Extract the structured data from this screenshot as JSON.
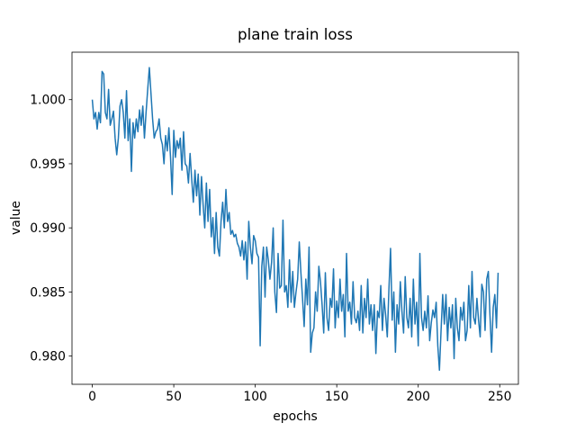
{
  "chart_data": {
    "type": "line",
    "title": "plane train loss",
    "x_label": "epochs",
    "y_label": "value",
    "x": [
      0,
      1,
      2,
      3,
      4,
      5,
      6,
      7,
      8,
      9,
      10,
      11,
      12,
      13,
      14,
      15,
      16,
      17,
      18,
      19,
      20,
      21,
      22,
      23,
      24,
      25,
      26,
      27,
      28,
      29,
      30,
      31,
      32,
      33,
      34,
      35,
      36,
      37,
      38,
      39,
      40,
      41,
      42,
      43,
      44,
      45,
      46,
      47,
      48,
      49,
      50,
      51,
      52,
      53,
      54,
      55,
      56,
      57,
      58,
      59,
      60,
      61,
      62,
      63,
      64,
      65,
      66,
      67,
      68,
      69,
      70,
      71,
      72,
      73,
      74,
      75,
      76,
      77,
      78,
      79,
      80,
      81,
      82,
      83,
      84,
      85,
      86,
      87,
      88,
      89,
      90,
      91,
      92,
      93,
      94,
      95,
      96,
      97,
      98,
      99,
      100,
      101,
      102,
      103,
      104,
      105,
      106,
      107,
      108,
      109,
      110,
      111,
      112,
      113,
      114,
      115,
      116,
      117,
      118,
      119,
      120,
      121,
      122,
      123,
      124,
      125,
      126,
      127,
      128,
      129,
      130,
      131,
      132,
      133,
      134,
      135,
      136,
      137,
      138,
      139,
      140,
      141,
      142,
      143,
      144,
      145,
      146,
      147,
      148,
      149,
      150,
      151,
      152,
      153,
      154,
      155,
      156,
      157,
      158,
      159,
      160,
      161,
      162,
      163,
      164,
      165,
      166,
      167,
      168,
      169,
      170,
      171,
      172,
      173,
      174,
      175,
      176,
      177,
      178,
      179,
      180,
      181,
      182,
      183,
      184,
      185,
      186,
      187,
      188,
      189,
      190,
      191,
      192,
      193,
      194,
      195,
      196,
      197,
      198,
      199,
      200,
      201,
      202,
      203,
      204,
      205,
      206,
      207,
      208,
      209,
      210,
      211,
      212,
      213,
      214,
      215,
      216,
      217,
      218,
      219,
      220,
      221,
      222,
      223,
      224,
      225,
      226,
      227,
      228,
      229,
      230,
      231,
      232,
      233,
      234,
      235,
      236,
      237,
      238,
      239,
      240,
      241,
      242,
      243,
      244,
      245,
      246,
      247,
      248,
      249
    ],
    "series": [
      {
        "color": "#1f77b4",
        "values": [
          1.0,
          0.9985,
          0.999,
          0.9977,
          0.999,
          0.9982,
          1.0022,
          1.002,
          0.999,
          0.9985,
          1.0008,
          0.998,
          0.9985,
          0.9991,
          0.997,
          0.9957,
          0.997,
          0.9995,
          1.0,
          0.999,
          0.997,
          1.0007,
          0.9968,
          0.9985,
          0.9944,
          0.9982,
          0.997,
          0.9985,
          0.9975,
          0.9992,
          0.998,
          0.9995,
          0.997,
          0.999,
          1.0008,
          1.0025,
          1.0005,
          0.9985,
          0.997,
          0.9975,
          0.9977,
          0.9985,
          0.997,
          0.9965,
          0.995,
          0.9972,
          0.996,
          0.9978,
          0.9955,
          0.9926,
          0.9976,
          0.9955,
          0.9968,
          0.9962,
          0.997,
          0.9945,
          0.9975,
          0.995,
          0.9948,
          0.9935,
          0.9958,
          0.9938,
          0.992,
          0.9945,
          0.9925,
          0.9942,
          0.991,
          0.994,
          0.9918,
          0.99,
          0.9935,
          0.9905,
          0.993,
          0.9893,
          0.9908,
          0.988,
          0.9912,
          0.9885,
          0.9878,
          0.9905,
          0.992,
          0.99,
          0.993,
          0.9905,
          0.9912,
          0.9895,
          0.9898,
          0.9893,
          0.9895,
          0.9888,
          0.9885,
          0.9878,
          0.989,
          0.9875,
          0.9889,
          0.986,
          0.9905,
          0.9885,
          0.9872,
          0.9894,
          0.989,
          0.988,
          0.9877,
          0.9808,
          0.987,
          0.9885,
          0.9846,
          0.9885,
          0.9875,
          0.986,
          0.9873,
          0.99,
          0.985,
          0.9834,
          0.988,
          0.9853,
          0.9855,
          0.9906,
          0.985,
          0.9855,
          0.9838,
          0.9875,
          0.9842,
          0.9866,
          0.9838,
          0.985,
          0.986,
          0.9889,
          0.9865,
          0.9845,
          0.9823,
          0.986,
          0.984,
          0.9885,
          0.9803,
          0.9818,
          0.9822,
          0.985,
          0.9835,
          0.987,
          0.9858,
          0.984,
          0.9818,
          0.9865,
          0.983,
          0.982,
          0.9845,
          0.9838,
          0.9868,
          0.9822,
          0.9843,
          0.983,
          0.986,
          0.9835,
          0.9848,
          0.9815,
          0.988,
          0.9835,
          0.9842,
          0.9825,
          0.9858,
          0.983,
          0.9826,
          0.9835,
          0.982,
          0.9855,
          0.9818,
          0.9845,
          0.983,
          0.986,
          0.9825,
          0.984,
          0.982,
          0.984,
          0.9802,
          0.9835,
          0.983,
          0.9855,
          0.982,
          0.9845,
          0.9832,
          0.9815,
          0.9852,
          0.9884,
          0.9828,
          0.985,
          0.9803,
          0.984,
          0.9825,
          0.9858,
          0.9835,
          0.9818,
          0.9862,
          0.983,
          0.9822,
          0.9845,
          0.9815,
          0.986,
          0.9825,
          0.9842,
          0.9808,
          0.988,
          0.983,
          0.982,
          0.9835,
          0.9822,
          0.9847,
          0.9812,
          0.9826,
          0.9836,
          0.983,
          0.9842,
          0.9808,
          0.9789,
          0.982,
          0.9848,
          0.9825,
          0.9848,
          0.9812,
          0.9838,
          0.9822,
          0.984,
          0.9798,
          0.9845,
          0.9822,
          0.9812,
          0.9838,
          0.9828,
          0.9842,
          0.9812,
          0.982,
          0.9855,
          0.9822,
          0.9866,
          0.983,
          0.9825,
          0.9845,
          0.9828,
          0.9815,
          0.9856,
          0.985,
          0.982,
          0.986,
          0.9866,
          0.9832,
          0.9803,
          0.9838,
          0.9848,
          0.9822,
          0.9865
        ]
      }
    ],
    "xlim": [
      -12.45,
      261.45
    ],
    "ylim": [
      0.9778,
      1.0037
    ],
    "xticks": [
      0,
      50,
      100,
      150,
      200,
      250
    ],
    "yticks": [
      {
        "value": 0.98,
        "label": "0.980"
      },
      {
        "value": 0.985,
        "label": "0.985"
      },
      {
        "value": 0.99,
        "label": "0.990"
      },
      {
        "value": 0.995,
        "label": "0.995"
      },
      {
        "value": 1.0,
        "label": "1.000"
      }
    ],
    "grid": false
  }
}
